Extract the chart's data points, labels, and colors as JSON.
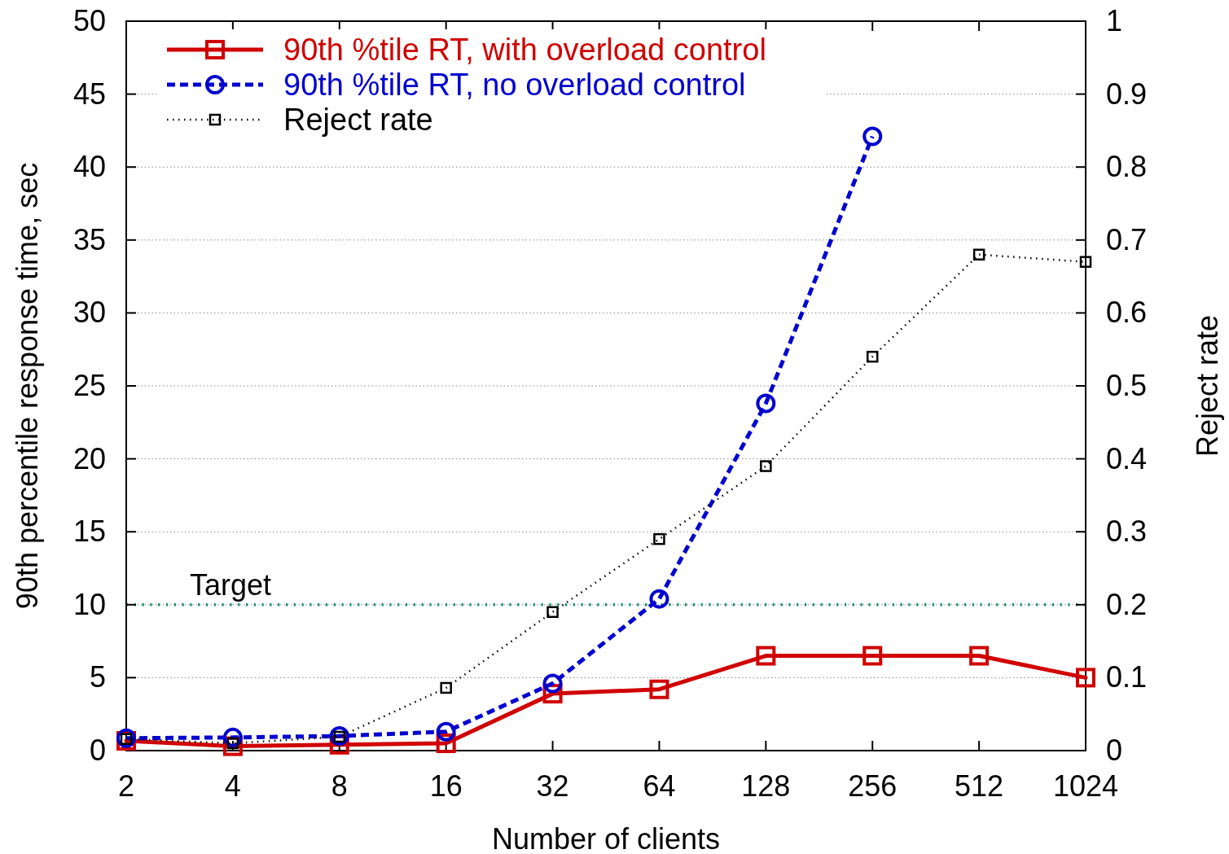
{
  "chart_data": {
    "type": "line",
    "xlabel": "Number of clients",
    "ylabel": "90th percentile response time, sec",
    "y2label": "Reject rate",
    "x": [
      2,
      4,
      8,
      16,
      32,
      64,
      128,
      256,
      512,
      1024
    ],
    "log": "x",
    "xlim": [
      2,
      1024
    ],
    "xticks": [
      2,
      4,
      8,
      16,
      32,
      64,
      128,
      256,
      512,
      1024
    ],
    "ylim": [
      0,
      50
    ],
    "yticks": [
      0,
      5,
      10,
      15,
      20,
      25,
      30,
      35,
      40,
      45,
      50
    ],
    "y2lim": [
      0,
      1
    ],
    "y2ticks": [
      0,
      0.1,
      0.2,
      0.3,
      0.4,
      0.5,
      0.6,
      0.7,
      0.8,
      0.9,
      1
    ],
    "grid": "y",
    "legend": "top left",
    "series": [
      {
        "name": "90th %tile RT, with overload control",
        "color": "#d00000",
        "marker": "square",
        "line_style": "solid",
        "values": [
          0.67,
          0.3,
          0.4,
          0.5,
          3.9,
          4.2,
          6.5,
          6.5,
          6.5,
          5.0
        ]
      },
      {
        "name": "90th %tile RT, no overload control",
        "color": "#0000d0",
        "marker": "circle",
        "line_style": "dashed",
        "values": [
          0.85,
          0.9,
          1.0,
          1.3,
          4.6,
          10.4,
          23.8,
          42.1,
          null,
          null
        ]
      },
      {
        "name": "Reject rate",
        "color": "#000000",
        "marker": "square",
        "line_style": "dotted",
        "axis": "y2",
        "values": [
          0.016,
          0.01,
          0.019,
          0.086,
          0.19,
          0.29,
          0.39,
          0.54,
          0.68,
          0.67
        ]
      }
    ],
    "ref_lines": [
      {
        "axis": "y",
        "value": 10,
        "label": "Target",
        "color": "#009060",
        "line_style": "dotted"
      }
    ]
  }
}
